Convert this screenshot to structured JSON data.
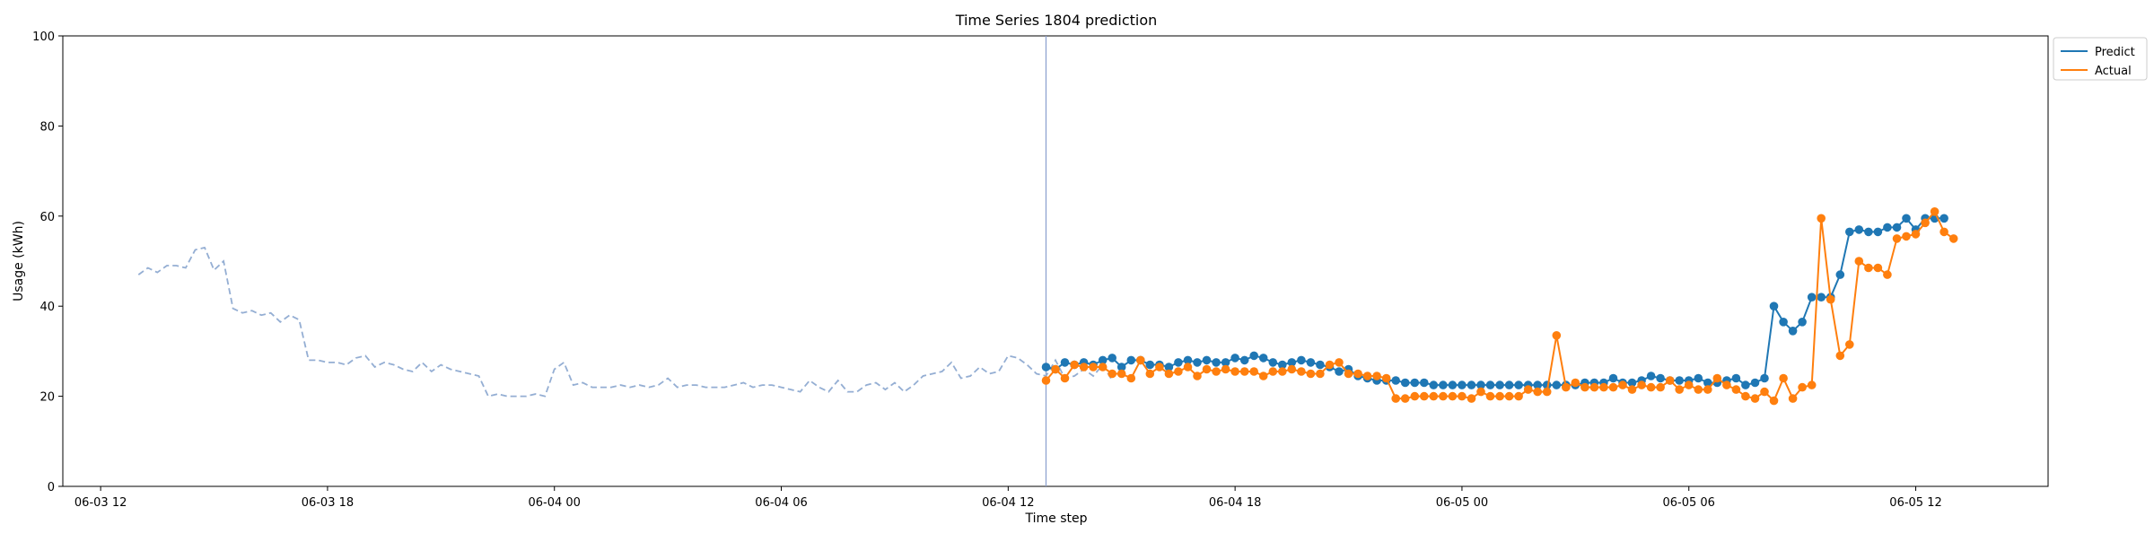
{
  "chart_data": {
    "type": "line",
    "title": "Time Series 1804 prediction",
    "xlabel": "Time step",
    "ylabel": "Usage (kWh)",
    "ylim": [
      0,
      100
    ],
    "xlim": [
      "2024-06-03 11:00",
      "2024-06-05 15:30"
    ],
    "y_ticks": [
      0,
      20,
      40,
      60,
      80,
      100
    ],
    "x_ticks": [
      {
        "at": "2024-06-03 12:00",
        "label": "06-03 12"
      },
      {
        "at": "2024-06-03 18:00",
        "label": "06-03 18"
      },
      {
        "at": "2024-06-04 00:00",
        "label": "06-04 00"
      },
      {
        "at": "2024-06-04 06:00",
        "label": "06-04 06"
      },
      {
        "at": "2024-06-04 12:00",
        "label": "06-04 12"
      },
      {
        "at": "2024-06-04 18:00",
        "label": "06-04 18"
      },
      {
        "at": "2024-06-05 00:00",
        "label": "06-05 00"
      },
      {
        "at": "2024-06-05 06:00",
        "label": "06-05 06"
      },
      {
        "at": "2024-06-05 12:00",
        "label": "06-05 12"
      }
    ],
    "grid": false,
    "legend_position": "upper-right-outside",
    "forecast_start": "2024-06-04 13:00",
    "history": {
      "start": "2024-06-03 13:00",
      "step_minutes": 15,
      "color": "#94aed3",
      "values": [
        47,
        48.5,
        47.5,
        49,
        49,
        48.5,
        52.5,
        53,
        48,
        50,
        39.5,
        38.5,
        39,
        38,
        38.5,
        36.5,
        38,
        37,
        28,
        28,
        27.5,
        27.5,
        27,
        28.5,
        29,
        26.5,
        27.5,
        27,
        26,
        25.5,
        27.5,
        25.5,
        27,
        26,
        25.5,
        25,
        24.5,
        20,
        20.5,
        20,
        20,
        20,
        20.5,
        20,
        26,
        27.5,
        22.5,
        23,
        22,
        22,
        22,
        22.5,
        22,
        22.5,
        22,
        22.5,
        24,
        22,
        22.5,
        22.5,
        22,
        22,
        22,
        22.5,
        23,
        22,
        22.5,
        22.5,
        22,
        21.5,
        21,
        23.5,
        22,
        21,
        23.5,
        21,
        21,
        22.5,
        23,
        21.5,
        23,
        21,
        22.5,
        24.5,
        25,
        25.5,
        27.5,
        24,
        24.5,
        26.5,
        25,
        25.5,
        29,
        28.5,
        27,
        25,
        24.5,
        28,
        24,
        24.5,
        26,
        24.5,
        27,
        23.5
      ]
    },
    "series": [
      {
        "name": "Predict",
        "color": "#1f77b4",
        "start": "2024-06-04 13:00",
        "step_minutes": 15,
        "values": [
          26.5,
          26,
          27.5,
          27,
          27.5,
          27,
          28,
          28.5,
          26.5,
          28,
          28,
          27,
          27,
          26.5,
          27.5,
          28,
          27.5,
          28,
          27.5,
          27.5,
          28.5,
          28,
          29,
          28.5,
          27.5,
          27,
          27.5,
          28,
          27.5,
          27,
          26.5,
          25.5,
          26,
          24.5,
          24,
          23.5,
          23.5,
          23.5,
          23,
          23,
          23,
          22.5,
          22.5,
          22.5,
          22.5,
          22.5,
          22.5,
          22.5,
          22.5,
          22.5,
          22.5,
          22.5,
          22.5,
          22.5,
          22.5,
          22.5,
          22.5,
          23,
          23,
          23,
          24,
          23,
          23,
          23.5,
          24.5,
          24,
          23.5,
          23.5,
          23.5,
          24,
          23,
          23,
          23.5,
          24,
          22.5,
          23,
          24,
          40,
          36.5,
          34.5,
          36.5,
          42,
          42,
          42,
          47,
          56.5,
          57,
          56.5,
          56.5,
          57.5,
          57.5,
          59.5,
          57,
          59.5,
          59.5,
          59.5
        ]
      },
      {
        "name": "Actual",
        "color": "#ff7f0e",
        "start": "2024-06-04 13:00",
        "step_minutes": 15,
        "values": [
          23.5,
          26,
          24,
          27,
          26.5,
          26.5,
          26.5,
          25,
          25,
          24,
          28,
          25,
          26.5,
          25,
          25.5,
          26.5,
          24.5,
          26,
          25.5,
          26,
          25.5,
          25.5,
          25.5,
          24.5,
          25.5,
          25.5,
          26,
          25.5,
          25,
          25,
          27,
          27.5,
          25,
          25,
          24.5,
          24.5,
          24,
          19.5,
          19.5,
          20,
          20,
          20,
          20,
          20,
          20,
          19.5,
          21,
          20,
          20,
          20,
          20,
          21.5,
          21,
          21,
          33.5,
          22,
          23,
          22,
          22,
          22,
          22,
          22.5,
          21.5,
          22.5,
          22,
          22,
          23.5,
          21.5,
          22.5,
          21.5,
          21.5,
          24,
          22.5,
          21.5,
          20,
          19.5,
          21,
          19,
          24,
          19.5,
          22,
          22.5,
          59.5,
          41.5,
          29,
          31.5,
          50,
          48.5,
          48.5,
          47,
          55,
          55.5,
          56,
          58.5,
          61,
          56.5,
          55
        ]
      }
    ]
  }
}
